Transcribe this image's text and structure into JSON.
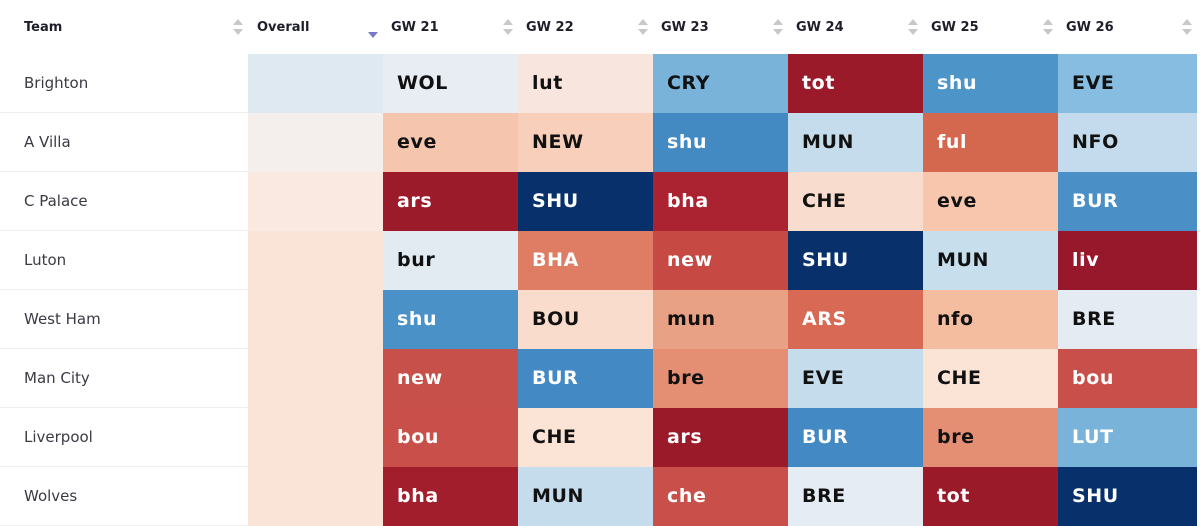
{
  "header": {
    "team": "Team",
    "overall": "Overall",
    "gws": [
      "GW 21",
      "GW 22",
      "GW 23",
      "GW 24",
      "GW 25",
      "GW 26"
    ]
  },
  "rows": [
    {
      "team": "Brighton",
      "overall_color": "#dfe9f2",
      "fixtures": [
        {
          "opp": "WOL",
          "color": "#e7edf3",
          "text": "light"
        },
        {
          "opp": "lut",
          "color": "#f8e6de",
          "text": "light"
        },
        {
          "opp": "CRY",
          "color": "#7ab3da",
          "text": "light"
        },
        {
          "opp": "tot",
          "color": "#9a1a2a",
          "text": "dark"
        },
        {
          "opp": "shu",
          "color": "#4d95c8",
          "text": "dark"
        },
        {
          "opp": "EVE",
          "color": "#86bde0",
          "text": "light"
        }
      ]
    },
    {
      "team": "A Villa",
      "overall_color": "#f4efec",
      "fixtures": [
        {
          "opp": "eve",
          "color": "#f5c5ad",
          "text": "light"
        },
        {
          "opp": "NEW",
          "color": "#f7cfbb",
          "text": "light"
        },
        {
          "opp": "shu",
          "color": "#4389c2",
          "text": "dark"
        },
        {
          "opp": "MUN",
          "color": "#c5dcec",
          "text": "light"
        },
        {
          "opp": "ful",
          "color": "#d4684f",
          "text": "dark"
        },
        {
          "opp": "NFO",
          "color": "#c3dbec",
          "text": "light"
        }
      ]
    },
    {
      "team": "C Palace",
      "overall_color": "#f9e9e1",
      "fixtures": [
        {
          "opp": "ars",
          "color": "#9b1b2b",
          "text": "dark"
        },
        {
          "opp": "SHU",
          "color": "#08306b",
          "text": "dark"
        },
        {
          "opp": "bha",
          "color": "#ab2331",
          "text": "dark"
        },
        {
          "opp": "CHE",
          "color": "#f8dccd",
          "text": "light"
        },
        {
          "opp": "eve",
          "color": "#f7c6ac",
          "text": "light"
        },
        {
          "opp": "BUR",
          "color": "#4a90c7",
          "text": "dark"
        }
      ]
    },
    {
      "team": "Luton",
      "overall_color": "#fae3d7",
      "fixtures": [
        {
          "opp": "bur",
          "color": "#e2eaf2",
          "text": "light"
        },
        {
          "opp": "BHA",
          "color": "#de7d63",
          "text": "dark"
        },
        {
          "opp": "new",
          "color": "#c64a43",
          "text": "dark"
        },
        {
          "opp": "SHU",
          "color": "#08306b",
          "text": "dark"
        },
        {
          "opp": "MUN",
          "color": "#c7deed",
          "text": "light"
        },
        {
          "opp": "liv",
          "color": "#97182a",
          "text": "dark"
        }
      ]
    },
    {
      "team": "West Ham",
      "overall_color": "#fae3d7",
      "fixtures": [
        {
          "opp": "shu",
          "color": "#4a91c7",
          "text": "dark"
        },
        {
          "opp": "BOU",
          "color": "#f9dccc",
          "text": "light"
        },
        {
          "opp": "mun",
          "color": "#e8a184",
          "text": "light"
        },
        {
          "opp": "ARS",
          "color": "#d86a55",
          "text": "dark"
        },
        {
          "opp": "nfo",
          "color": "#f4bda0",
          "text": "light"
        },
        {
          "opp": "BRE",
          "color": "#e4ebf2",
          "text": "light"
        }
      ]
    },
    {
      "team": "Man City",
      "overall_color": "#fae3d7",
      "fixtures": [
        {
          "opp": "new",
          "color": "#c8504a",
          "text": "dark"
        },
        {
          "opp": "BUR",
          "color": "#4389c3",
          "text": "dark"
        },
        {
          "opp": "bre",
          "color": "#e48e73",
          "text": "light"
        },
        {
          "opp": "EVE",
          "color": "#c5dcec",
          "text": "light"
        },
        {
          "opp": "CHE",
          "color": "#fbe3d6",
          "text": "light"
        },
        {
          "opp": "bou",
          "color": "#c9504a",
          "text": "dark"
        }
      ]
    },
    {
      "team": "Liverpool",
      "overall_color": "#fae3d7",
      "fixtures": [
        {
          "opp": "bou",
          "color": "#c9504a",
          "text": "dark"
        },
        {
          "opp": "CHE",
          "color": "#fbe3d6",
          "text": "light"
        },
        {
          "opp": "ars",
          "color": "#9a1a2a",
          "text": "dark"
        },
        {
          "opp": "BUR",
          "color": "#4389c3",
          "text": "dark"
        },
        {
          "opp": "bre",
          "color": "#e48e73",
          "text": "light"
        },
        {
          "opp": "LUT",
          "color": "#7ab3da",
          "text": "dark"
        }
      ]
    },
    {
      "team": "Wolves",
      "overall_color": "#fae3d7",
      "fixtures": [
        {
          "opp": "bha",
          "color": "#a31e2d",
          "text": "dark"
        },
        {
          "opp": "MUN",
          "color": "#c5dcec",
          "text": "light"
        },
        {
          "opp": "che",
          "color": "#c9504a",
          "text": "dark"
        },
        {
          "opp": "BRE",
          "color": "#e6ecf3",
          "text": "light"
        },
        {
          "opp": "tot",
          "color": "#9a1a2a",
          "text": "dark"
        },
        {
          "opp": "SHU",
          "color": "#08306b",
          "text": "dark"
        }
      ]
    }
  ]
}
